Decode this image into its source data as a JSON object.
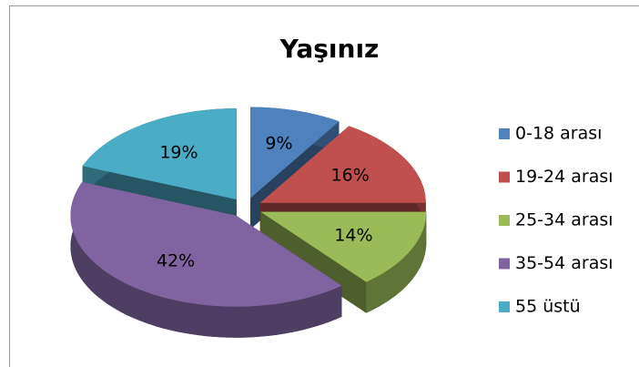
{
  "chart_data": {
    "type": "pie",
    "title": "Yaşınız",
    "categories": [
      "0-18 arası",
      "19-24 arası",
      "25-34 arası",
      "35-54 arası",
      "55 üstü"
    ],
    "values": [
      9,
      16,
      14,
      42,
      19
    ],
    "value_labels": [
      "9%",
      "16%",
      "14%",
      "42%",
      "19%"
    ],
    "colors": [
      "#4f81bd",
      "#c0504d",
      "#9bbb59",
      "#8064a2",
      "#4bacc6"
    ]
  }
}
